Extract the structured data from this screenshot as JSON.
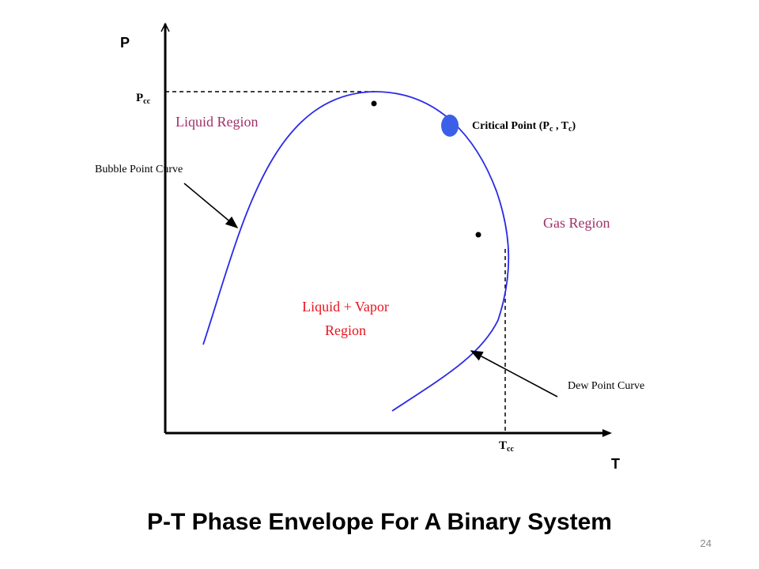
{
  "diagram": {
    "axis_y_label": "P",
    "axis_x_label": "T",
    "pcc_main": "P",
    "pcc_sub": "cc",
    "tcc_main": "T",
    "tcc_sub": "cc",
    "liquid_region": "Liquid Region",
    "gas_region": "Gas Region",
    "two_phase_line1": "Liquid + Vapor",
    "two_phase_line2": "Region",
    "bubble_curve": "Bubble Point Curve",
    "dew_curve": "Dew Point Curve",
    "critical_prefix": "Critical Point (P",
    "critical_sub_c1": "c",
    "critical_mid": " , T",
    "critical_sub_c2": "c",
    "critical_suffix": ")"
  },
  "colors": {
    "envelope": "#2a2ae8",
    "critical_point": "#3b5fe8",
    "region_label": "#a0306a",
    "two_phase_label": "#e8141e",
    "axis": "#000000"
  },
  "slide": {
    "title": "P-T Phase Envelope For A Binary System",
    "page_number": "24"
  }
}
